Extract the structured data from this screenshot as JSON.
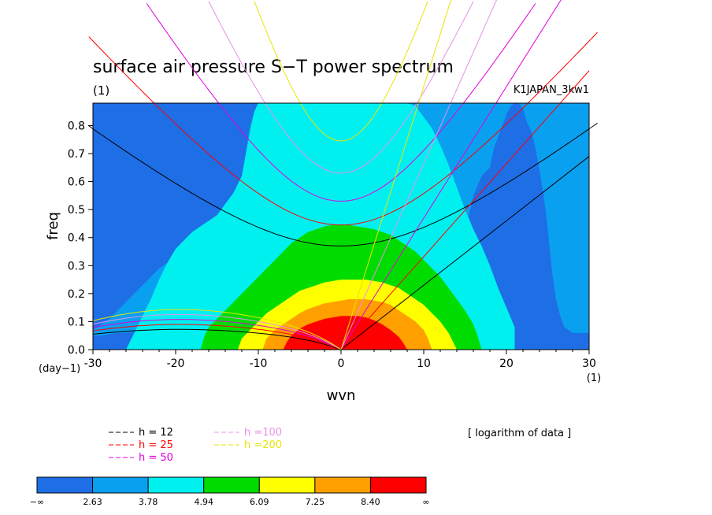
{
  "chart_data": {
    "type": "heatmap",
    "title": "surface air pressure S−T power spectrum",
    "title_unit": "(1)",
    "run_label": "K1JAPAN_3kw1",
    "xlabel": "wvn",
    "ylabel": "freq",
    "x_unit": "(1)",
    "y_unit": "(day−1)",
    "xlim": [
      -30,
      30
    ],
    "ylim": [
      0,
      0.88
    ],
    "x_ticks": [
      -30,
      -20,
      -10,
      0,
      10,
      20,
      30
    ],
    "y_ticks": [
      0.0,
      0.1,
      0.2,
      0.3,
      0.4,
      0.5,
      0.6,
      0.7,
      0.8
    ],
    "y_tick_labels": [
      "0.0",
      "0.1",
      "0.2",
      "0.3",
      "0.4",
      "0.5",
      "0.6",
      "0.7",
      "0.8"
    ],
    "note": "[ logarithm of data ]",
    "colorbar": {
      "levels": [
        "−∞",
        "2.63",
        "3.78",
        "4.94",
        "6.09",
        "7.25",
        "8.40",
        "∞"
      ],
      "colors": [
        "#1e6ee6",
        "#0aa0f0",
        "#00f0f0",
        "#00dc00",
        "#ffff00",
        "#ffa000",
        "#ff0000"
      ]
    },
    "contour_regions": [
      {
        "level": 1,
        "color": "#0aa0f0",
        "x": [
          -30,
          -29,
          -27,
          -26,
          -24,
          -22,
          -20,
          -18,
          -16,
          -14,
          -12,
          -10,
          -8,
          -6,
          -4,
          -2,
          0,
          2,
          4,
          6,
          8,
          10,
          12,
          14,
          15,
          16,
          17,
          18,
          18.5,
          19,
          19.5,
          20,
          20.5,
          21,
          21.5,
          22,
          22.5,
          23,
          23.5,
          24,
          24.5,
          25,
          25.5,
          26,
          26.5,
          27,
          28,
          30,
          30,
          28,
          26,
          24,
          22,
          20,
          18,
          16,
          14,
          12,
          10,
          8,
          6,
          4,
          2,
          0,
          -2,
          -4,
          -6,
          -8,
          -10,
          -10.5,
          -11,
          -11.5,
          -12,
          -13,
          -14,
          -15,
          -16,
          -17,
          -18,
          -20,
          -22,
          -24,
          -26,
          -28,
          -30
        ],
        "y": [
          0.05,
          0.05,
          0.06,
          0.06,
          0.07,
          0.08,
          0.1,
          0.13,
          0.17,
          0.21,
          0.25,
          0.29,
          0.34,
          0.36,
          0.37,
          0.37,
          0.37,
          0.37,
          0.37,
          0.37,
          0.36,
          0.35,
          0.33,
          0.35,
          0.42,
          0.55,
          0.62,
          0.65,
          0.72,
          0.76,
          0.8,
          0.84,
          0.87,
          0.88,
          0.88,
          0.86,
          0.81,
          0.78,
          0.72,
          0.64,
          0.55,
          0.43,
          0.28,
          0.18,
          0.12,
          0.08,
          0.06,
          0.06,
          0.88,
          0.88,
          0.88,
          0.88,
          0.88,
          0.88,
          0.88,
          0.88,
          0.88,
          0.88,
          0.88,
          0.88,
          0.88,
          0.88,
          0.88,
          0.88,
          0.88,
          0.88,
          0.88,
          0.88,
          0.88,
          0.85,
          0.8,
          0.71,
          0.62,
          0.55,
          0.5,
          0.46,
          0.42,
          0.39,
          0.37,
          0.33,
          0.29,
          0.23,
          0.17,
          0.11,
          0.07
        ]
      },
      {
        "level": 2,
        "color": "#00f0f0",
        "x": [
          -26,
          -24,
          -22,
          -20,
          -18,
          -16,
          -14,
          -12,
          -10,
          -8,
          -6,
          -4,
          -2,
          0,
          2,
          4,
          6,
          8,
          10,
          12,
          14,
          15,
          16,
          17,
          17.5,
          18,
          18.5,
          19,
          19.5,
          20,
          20.5,
          21,
          21,
          20,
          19,
          18,
          17,
          16,
          15,
          14,
          13,
          12,
          11,
          10,
          9,
          8,
          7,
          6,
          5,
          4,
          3,
          2,
          1,
          0,
          -1,
          -2,
          -3,
          -4,
          -5,
          -6,
          -7,
          -8,
          -9,
          -10,
          -10.5,
          -11,
          -11.5,
          -12,
          -13,
          -14,
          -14.5,
          -15,
          -15.5,
          -16,
          -16.5,
          -17,
          -18,
          -19,
          -20,
          -21,
          -22,
          -23,
          -24,
          -25,
          -26
        ],
        "y": [
          0.0,
          0.0,
          0.0,
          0.0,
          0.0,
          0.0,
          0.0,
          0.0,
          0.0,
          0.0,
          0.0,
          0.0,
          0.0,
          0.0,
          0.0,
          0.0,
          0.0,
          0.0,
          0.0,
          0.0,
          0.0,
          0.0,
          0.0,
          0.0,
          0.0,
          0.0,
          0.0,
          0.0,
          0.0,
          0.0,
          0.0,
          0.0,
          0.08,
          0.15,
          0.22,
          0.3,
          0.37,
          0.43,
          0.5,
          0.58,
          0.66,
          0.73,
          0.79,
          0.83,
          0.87,
          0.88,
          0.88,
          0.88,
          0.88,
          0.88,
          0.88,
          0.88,
          0.88,
          0.88,
          0.88,
          0.88,
          0.88,
          0.88,
          0.88,
          0.88,
          0.88,
          0.88,
          0.88,
          0.88,
          0.85,
          0.78,
          0.7,
          0.62,
          0.56,
          0.52,
          0.5,
          0.48,
          0.47,
          0.46,
          0.45,
          0.44,
          0.42,
          0.39,
          0.36,
          0.31,
          0.25,
          0.18,
          0.12,
          0.06,
          0.0
        ]
      },
      {
        "level": 3,
        "color": "#00dc00",
        "x": [
          -17,
          -16.5,
          -16,
          -15,
          -14,
          -13,
          -12,
          -11,
          -10,
          -9,
          -8,
          -7,
          -6,
          -5,
          -4,
          -3,
          -2,
          -1,
          0,
          1,
          2,
          3,
          4,
          5,
          6,
          7,
          8,
          9,
          10,
          11,
          12,
          13,
          14,
          15,
          16,
          16.5,
          17
        ],
        "y": [
          0.0,
          0.05,
          0.08,
          0.11,
          0.14,
          0.17,
          0.2,
          0.23,
          0.26,
          0.29,
          0.32,
          0.35,
          0.38,
          0.4,
          0.42,
          0.43,
          0.44,
          0.445,
          0.445,
          0.445,
          0.44,
          0.435,
          0.43,
          0.42,
          0.41,
          0.39,
          0.37,
          0.35,
          0.32,
          0.29,
          0.26,
          0.22,
          0.18,
          0.14,
          0.09,
          0.05,
          0.0
        ]
      },
      {
        "level": 4,
        "color": "#ffff00",
        "x": [
          -12.5,
          -12,
          -11,
          -10,
          -9,
          -8,
          -7,
          -6,
          -5,
          -4,
          -3,
          -2,
          -1,
          0,
          1,
          2,
          3,
          4,
          5,
          6,
          7,
          8,
          9,
          10,
          11,
          12,
          13,
          13.5,
          14
        ],
        "y": [
          0.0,
          0.04,
          0.07,
          0.1,
          0.13,
          0.15,
          0.17,
          0.19,
          0.21,
          0.22,
          0.23,
          0.24,
          0.245,
          0.25,
          0.25,
          0.25,
          0.25,
          0.245,
          0.24,
          0.23,
          0.22,
          0.2,
          0.18,
          0.16,
          0.13,
          0.1,
          0.06,
          0.03,
          0.0
        ]
      },
      {
        "level": 5,
        "color": "#ffa000",
        "x": [
          -9.5,
          -9,
          -8,
          -7,
          -6,
          -5,
          -4,
          -3,
          -2,
          -1,
          0,
          1,
          2,
          3,
          4,
          5,
          6,
          7,
          8,
          9,
          10,
          10.5,
          11
        ],
        "y": [
          0.0,
          0.04,
          0.07,
          0.09,
          0.11,
          0.13,
          0.145,
          0.155,
          0.165,
          0.17,
          0.175,
          0.18,
          0.18,
          0.18,
          0.175,
          0.17,
          0.16,
          0.14,
          0.12,
          0.1,
          0.07,
          0.04,
          0.0
        ]
      },
      {
        "level": 6,
        "color": "#ff0000",
        "x": [
          -7,
          -6.5,
          -6,
          -5,
          -4,
          -3,
          -2,
          -1,
          0,
          1,
          2,
          3,
          4,
          5,
          6,
          7,
          7.5,
          8
        ],
        "y": [
          0.0,
          0.03,
          0.05,
          0.075,
          0.09,
          0.1,
          0.11,
          0.115,
          0.12,
          0.12,
          0.12,
          0.115,
          0.105,
          0.09,
          0.07,
          0.045,
          0.025,
          0.0
        ]
      }
    ],
    "dispersion_curves": [
      {
        "h": "12",
        "label": "h = 12",
        "color": "#000000",
        "ymin": [
          0.37,
          0.37
        ],
        "slope": 0.0232
      },
      {
        "h": "25",
        "label": "h = 25",
        "color": "#ff0000",
        "ymin": [
          0.445,
          0.445
        ],
        "slope": 0.0336
      },
      {
        "h": "50",
        "label": "h = 50",
        "color": "#e000e0",
        "ymin": [
          0.53,
          0.53
        ],
        "slope": 0.0475
      },
      {
        "h": "100",
        "label": "h =100",
        "color": "#e890e8",
        "ymin": [
          0.63,
          0.63
        ],
        "slope": 0.067
      },
      {
        "h": "200",
        "label": "h =200",
        "color": "#e6e600",
        "ymin": [
          0.745,
          0.745
        ],
        "slope": 0.095
      }
    ]
  },
  "legend": {
    "items": [
      {
        "label": "h = 12",
        "color": "#000000"
      },
      {
        "label": "h = 25",
        "color": "#ff0000"
      },
      {
        "label": "h = 50",
        "color": "#e000e0"
      },
      {
        "label": "h =100",
        "color": "#e890e8"
      },
      {
        "label": "h =200",
        "color": "#e6e600"
      }
    ]
  }
}
